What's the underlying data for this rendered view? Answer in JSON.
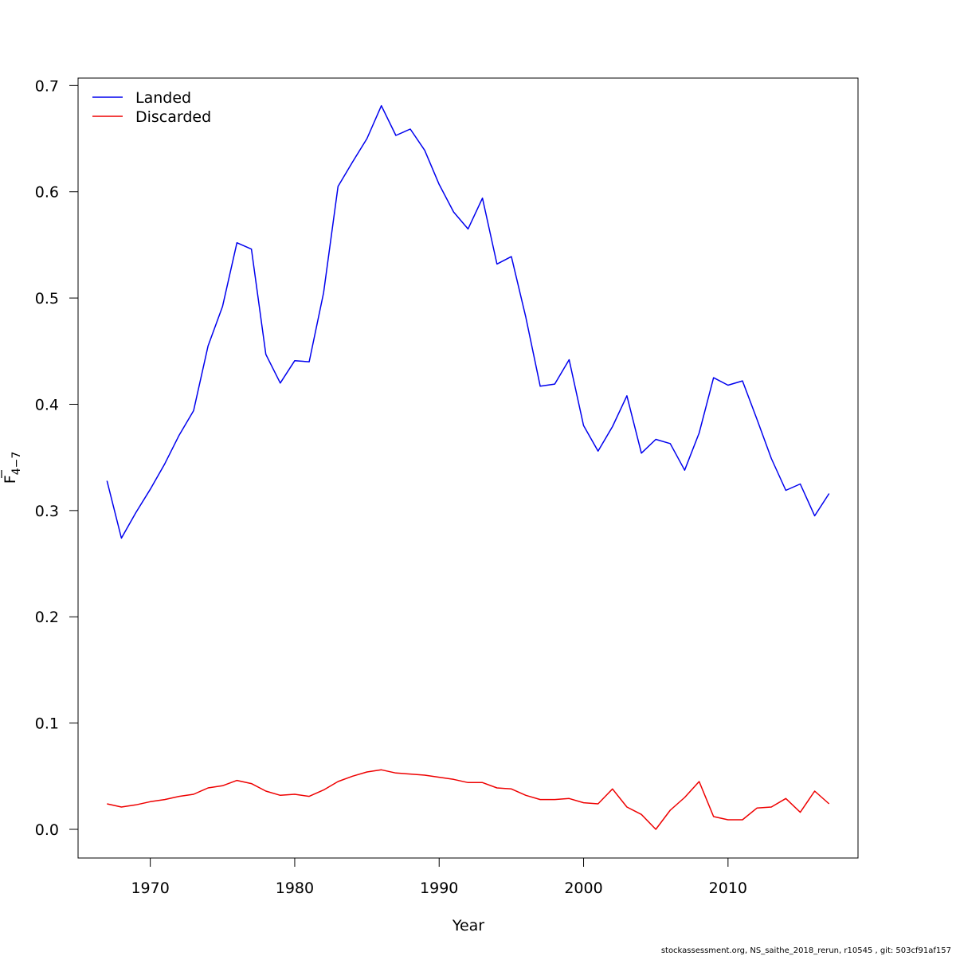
{
  "chart_data": {
    "type": "line",
    "xlabel": "Year",
    "ylabel": {
      "main": "F",
      "sub": "4−7"
    },
    "xlim": [
      1965,
      2019
    ],
    "ylim": [
      -0.027,
      0.707
    ],
    "x_ticks": [
      1970,
      1980,
      1990,
      2000,
      2010
    ],
    "y_ticks": [
      0.0,
      0.1,
      0.2,
      0.3,
      0.4,
      0.5,
      0.6,
      0.7
    ],
    "x_tick_labels": [
      "1970",
      "1980",
      "1990",
      "2000",
      "2010"
    ],
    "y_tick_labels": [
      "0.0",
      "0.1",
      "0.2",
      "0.3",
      "0.4",
      "0.5",
      "0.6",
      "0.7"
    ],
    "legend_position": "top-left",
    "x": [
      1967,
      1968,
      1969,
      1970,
      1971,
      1972,
      1973,
      1974,
      1975,
      1976,
      1977,
      1978,
      1979,
      1980,
      1981,
      1982,
      1983,
      1984,
      1985,
      1986,
      1987,
      1988,
      1989,
      1990,
      1991,
      1992,
      1993,
      1994,
      1995,
      1996,
      1997,
      1998,
      1999,
      2000,
      2001,
      2002,
      2003,
      2004,
      2005,
      2006,
      2007,
      2008,
      2009,
      2010,
      2011,
      2012,
      2013,
      2014,
      2015,
      2016,
      2017
    ],
    "series": [
      {
        "name": "Landed",
        "color": "#0000ee",
        "values": [
          0.328,
          0.274,
          0.298,
          0.32,
          0.344,
          0.371,
          0.394,
          0.455,
          0.492,
          0.552,
          0.546,
          0.447,
          0.42,
          0.441,
          0.44,
          0.505,
          0.605,
          0.628,
          0.65,
          0.681,
          0.653,
          0.659,
          0.639,
          0.607,
          0.581,
          0.565,
          0.594,
          0.532,
          0.539,
          0.482,
          0.417,
          0.419,
          0.442,
          0.38,
          0.356,
          0.379,
          0.408,
          0.354,
          0.367,
          0.363,
          0.338,
          0.373,
          0.425,
          0.418,
          0.422,
          0.386,
          0.349,
          0.319,
          0.325,
          0.295,
          0.316
        ]
      },
      {
        "name": "Discarded",
        "color": "#ee0000",
        "values": [
          0.024,
          0.021,
          0.023,
          0.026,
          0.028,
          0.031,
          0.033,
          0.039,
          0.041,
          0.046,
          0.043,
          0.036,
          0.032,
          0.033,
          0.031,
          0.037,
          0.045,
          0.05,
          0.054,
          0.056,
          0.053,
          0.052,
          0.051,
          0.049,
          0.047,
          0.044,
          0.044,
          0.039,
          0.038,
          0.032,
          0.028,
          0.028,
          0.029,
          0.025,
          0.024,
          0.038,
          0.021,
          0.014,
          0.0,
          0.018,
          0.03,
          0.045,
          0.012,
          0.009,
          0.009,
          0.02,
          0.021,
          0.029,
          0.016,
          0.036,
          0.024
        ]
      }
    ]
  },
  "footer": "stockassessment.org, NS_saithe_2018_rerun, r10545 , git: 503cf91af157"
}
